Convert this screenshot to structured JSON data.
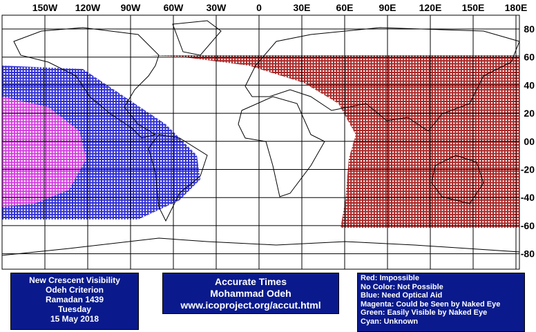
{
  "map": {
    "lon_labels": [
      "150W",
      "120W",
      "90W",
      "60W",
      "30W",
      "0",
      "30E",
      "60E",
      "90E",
      "120E",
      "150E",
      "180E"
    ],
    "lat_labels": [
      "80",
      "60",
      "40",
      "20",
      "00",
      "-20",
      "-40",
      "-60",
      "-80"
    ]
  },
  "info": {
    "lines": [
      "New Crescent Visibility",
      "Odeh Criterion",
      "Ramadan 1439",
      "Tuesday",
      "15 May 2018"
    ]
  },
  "credit": {
    "lines": [
      "Accurate Times",
      "Mohammad Odeh",
      "www.icoproject.org/accut.html"
    ]
  },
  "legend": {
    "lines": [
      "Red: Impossible",
      "No Color: Not Possible",
      "Blue: Need Optical Aid",
      "Magenta: Could be Seen by Naked Eye",
      "Green: Easily Visible by Naked Eye",
      "Cyan: Unknown"
    ]
  }
}
